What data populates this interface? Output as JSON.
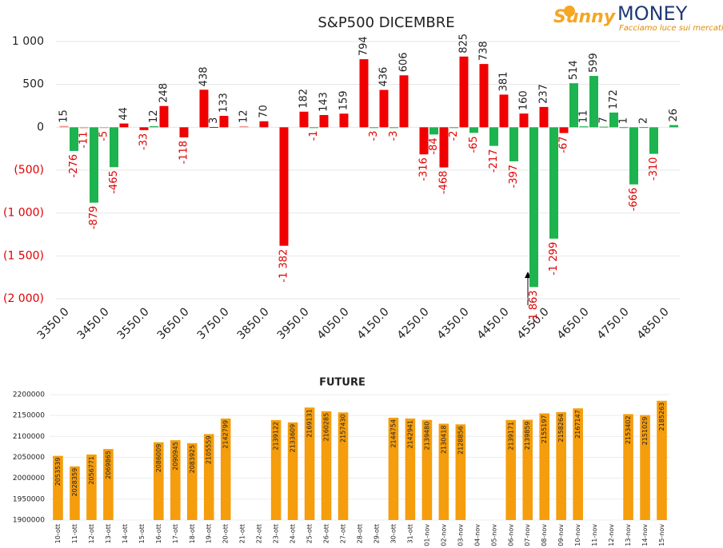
{
  "logo": {
    "brand": "Sunny",
    "name": "MONEY",
    "tagline": "Facciamo luce sui mercati"
  },
  "chart_data": [
    {
      "type": "bar",
      "title": "S&P500 DICEMBRE",
      "x": [
        3350,
        3375,
        3400,
        3425,
        3450,
        3475,
        3500,
        3550,
        3575,
        3600,
        3650,
        3700,
        3725,
        3750,
        3800,
        3850,
        3900,
        3950,
        3975,
        4000,
        4050,
        4100,
        4125,
        4150,
        4175,
        4200,
        4250,
        4275,
        4300,
        4325,
        4350,
        4375,
        4400,
        4425,
        4450,
        4475,
        4500,
        4525,
        4550,
        4575,
        4600,
        4625,
        4650,
        4675,
        4700,
        4725,
        4750,
        4775,
        4800,
        4825,
        4875
      ],
      "values": [
        15,
        -276,
        -11,
        -879,
        -5,
        -465,
        44,
        -33,
        12,
        248,
        -118,
        438,
        3,
        133,
        12,
        70,
        -1382,
        182,
        -1,
        143,
        159,
        794,
        -3,
        436,
        -3,
        606,
        -316,
        -84,
        -468,
        -2,
        825,
        -65,
        738,
        -217,
        381,
        -397,
        160,
        -1863,
        237,
        -1299,
        -67,
        514,
        11,
        599,
        7,
        172,
        1,
        -666,
        2,
        -310,
        26
      ],
      "value_labels": [
        "15",
        "-276",
        "-11",
        "-879",
        "-5",
        "-465",
        "44",
        "-33",
        "12",
        "248",
        "-118",
        "438",
        "3",
        "133",
        "12",
        "70",
        "-1 382",
        "182",
        "-1",
        "143",
        "159",
        "794",
        "-3",
        "436",
        "-3",
        "606",
        "-316",
        "-84",
        "-468",
        "-2",
        "825",
        "-65",
        "738",
        "-217",
        "381",
        "-397",
        "160",
        "-1 863",
        "237",
        "-1 299",
        "-67",
        "514",
        "11",
        "599",
        "7",
        "172",
        "1",
        "-666",
        "2",
        "-310",
        "26"
      ],
      "colors": [
        "#f28b82",
        "#1db34f",
        "#f28b82",
        "#1db34f",
        "#f28b82",
        "#1db34f",
        "#f00000",
        "#f00000",
        "#1db34f",
        "#f00000",
        "#f00000",
        "#f00000",
        "#f00000",
        "#f00000",
        "#f28b82",
        "#f00000",
        "#f00000",
        "#f00000",
        "#1db34f",
        "#f00000",
        "#f00000",
        "#f00000",
        "#1db34f",
        "#f00000",
        "#1db34f",
        "#f00000",
        "#f00000",
        "#1db34f",
        "#f00000",
        "#1db34f",
        "#f00000",
        "#1db34f",
        "#f00000",
        "#1db34f",
        "#f00000",
        "#1db34f",
        "#f00000",
        "#1db34f",
        "#f00000",
        "#1db34f",
        "#f00000",
        "#1db34f",
        "#1db34f",
        "#1db34f",
        "#1db34f",
        "#1db34f",
        "#1db34f",
        "#1db34f",
        "#1db34f",
        "#1db34f",
        "#1db34f"
      ],
      "xlim": [
        3330,
        4890
      ],
      "xticks": [
        {
          "value": 3350,
          "label": "3350.0"
        },
        {
          "value": 3450,
          "label": "3450.0"
        },
        {
          "value": 3550,
          "label": "3550.0"
        },
        {
          "value": 3650,
          "label": "3650.0"
        },
        {
          "value": 3750,
          "label": "3750.0"
        },
        {
          "value": 3850,
          "label": "3850.0"
        },
        {
          "value": 3950,
          "label": "3950.0"
        },
        {
          "value": 4050,
          "label": "4050.0"
        },
        {
          "value": 4150,
          "label": "4150.0"
        },
        {
          "value": 4250,
          "label": "4250.0"
        },
        {
          "value": 4350,
          "label": "4350.0"
        },
        {
          "value": 4450,
          "label": "4450.0"
        },
        {
          "value": 4550,
          "label": "4550.0"
        },
        {
          "value": 4650,
          "label": "4650.0"
        },
        {
          "value": 4750,
          "label": "4750.0"
        },
        {
          "value": 4850,
          "label": "4850.0"
        }
      ],
      "ylim": [
        -2000,
        1000
      ],
      "yticks": [
        {
          "value": 1000,
          "label": "1 000"
        },
        500,
        0,
        {
          "value": -500,
          "label": "(500)"
        },
        {
          "value": -1000,
          "label": "(1 000)"
        },
        {
          "value": -1500,
          "label": "(1 500)"
        },
        {
          "value": -2000,
          "label": "(2 000)"
        }
      ],
      "grid": true
    },
    {
      "type": "bar",
      "title": "FUTURE",
      "color": "#f59d0c",
      "categories": [
        "10-ott",
        "11-ott",
        "12-ott",
        "13-ott",
        "14-ott",
        "15-ott",
        "16-ott",
        "17-ott",
        "18-ott",
        "19-ott",
        "20-ott",
        "21-ott",
        "22-ott",
        "23-ott",
        "24-ott",
        "25-ott",
        "26-ott",
        "27-ott",
        "28-ott",
        "29-ott",
        "30-ott",
        "31-ott",
        "01-nov",
        "02-nov",
        "03-nov",
        "04-nov",
        "05-nov",
        "06-nov",
        "07-nov",
        "08-nov",
        "09-nov",
        "10-nov",
        "11-nov",
        "12-nov",
        "13-nov",
        "14-nov",
        "15-nov"
      ],
      "values": [
        2053539,
        2028359,
        2056771,
        2069865,
        null,
        null,
        2086009,
        2090945,
        2083925,
        2105559,
        2142799,
        null,
        null,
        2139122,
        2133609,
        2169131,
        2160285,
        2157430,
        null,
        null,
        2144754,
        2142941,
        2139480,
        2130418,
        2128856,
        null,
        null,
        2139171,
        2139859,
        2155197,
        2158264,
        2167147,
        null,
        null,
        2153402,
        2151029,
        2185263
      ],
      "ylim": [
        1900000,
        2200000
      ],
      "yticks": [
        1900000,
        1950000,
        2000000,
        2050000,
        2100000,
        2150000,
        2200000
      ],
      "grid": true
    }
  ]
}
